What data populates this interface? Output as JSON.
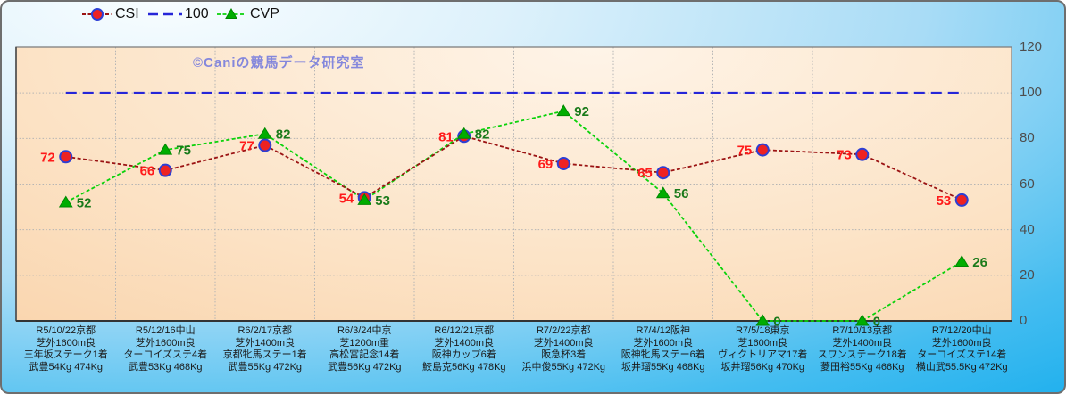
{
  "watermark": "©Caniの競馬データ研究室",
  "legend": {
    "items": [
      {
        "label": "CSI"
      },
      {
        "label": "100"
      },
      {
        "label": "CVP"
      }
    ]
  },
  "colors": {
    "csi_line": "#9b1313",
    "csi_marker_fill": "#ee2222",
    "csi_marker_edge": "#2d3fd4",
    "csi_label": "#ff1a1a",
    "ref_line": "#2626d8",
    "cvp_line": "#0ad20a",
    "cvp_marker_fill": "#00ad00",
    "cvp_marker_edge": "#008800",
    "cvp_label": "#1a7a1a",
    "grid": "#b4b4b4",
    "axis_tick_text": "#4d4d4d"
  },
  "chart_data": {
    "type": "line",
    "title": "",
    "xlabel": "",
    "ylabel": "",
    "ylim": [
      0,
      120
    ],
    "yticks": [
      0,
      20,
      40,
      60,
      80,
      100,
      120
    ],
    "grid": true,
    "legend_position": "top-left",
    "categories": [
      {
        "lines": [
          "R5/10/22京都",
          "芝外1600m良",
          "三年坂ステーク1着",
          "武豊54Kg 474Kg"
        ]
      },
      {
        "lines": [
          "R5/12/16中山",
          "芝外1600m良",
          "ターコイズステ4着",
          "武豊53Kg 468Kg"
        ]
      },
      {
        "lines": [
          "R6/2/17京都",
          "芝外1400m良",
          "京都牝馬ステー1着",
          "武豊55Kg 472Kg"
        ]
      },
      {
        "lines": [
          "R6/3/24中京",
          "芝1200m重",
          "高松宮記念14着",
          "武豊56Kg 472Kg"
        ]
      },
      {
        "lines": [
          "R6/12/21京都",
          "芝外1400m良",
          "阪神カップ6着",
          "鮫島克56Kg 478Kg"
        ]
      },
      {
        "lines": [
          "R7/2/22京都",
          "芝外1400m良",
          "阪急杯3着",
          "浜中俊55Kg 472Kg"
        ]
      },
      {
        "lines": [
          "R7/4/12阪神",
          "芝外1600m良",
          "阪神牝馬ステー6着",
          "坂井瑠55Kg 468Kg"
        ]
      },
      {
        "lines": [
          "R7/5/18東京",
          "芝1600m良",
          "ヴィクトリアマ17着",
          "坂井瑠56Kg 470Kg"
        ]
      },
      {
        "lines": [
          "R7/10/13京都",
          "芝外1400m良",
          "スワンステーク18着",
          "菱田裕55Kg 466Kg"
        ]
      },
      {
        "lines": [
          "R7/12/20中山",
          "芝外1600m良",
          "ターコイズステ14着",
          "横山武55.5Kg 472Kg"
        ]
      }
    ],
    "series": [
      {
        "name": "CSI",
        "kind": "data",
        "marker": "circle",
        "values": [
          72,
          66,
          77,
          54,
          81,
          69,
          65,
          75,
          73,
          53
        ]
      },
      {
        "name": "100",
        "kind": "reference",
        "marker": "none",
        "values": [
          100,
          100,
          100,
          100,
          100,
          100,
          100,
          100,
          100,
          100
        ]
      },
      {
        "name": "CVP",
        "kind": "data",
        "marker": "triangle",
        "values": [
          52,
          75,
          82,
          53,
          82,
          92,
          56,
          0,
          0,
          26
        ]
      }
    ]
  }
}
